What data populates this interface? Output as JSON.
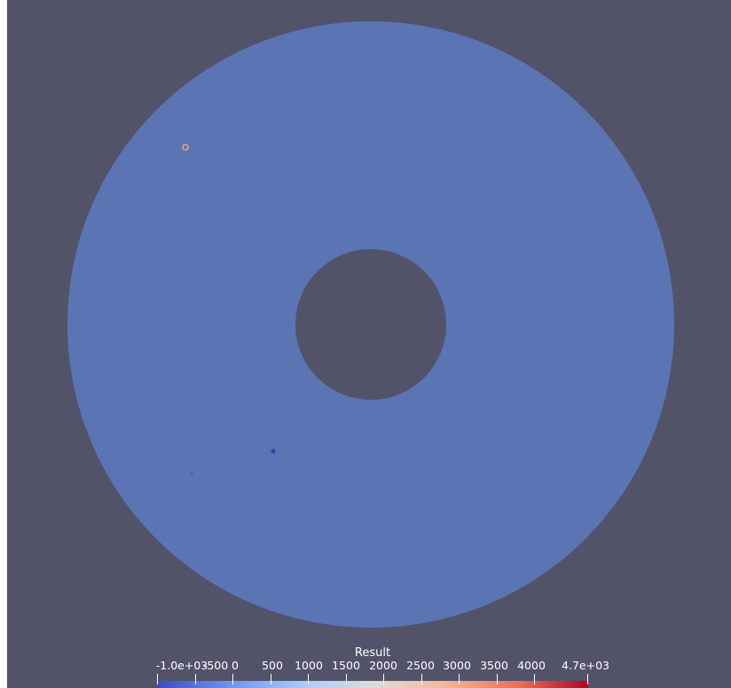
{
  "view": {
    "background_color": "#525369",
    "object_color": "#5b74b4"
  },
  "legend": {
    "title": "Result",
    "range_min": -1000,
    "range_max": 4700,
    "tick_values": [
      -1000,
      -500,
      0,
      500,
      1000,
      1500,
      2000,
      2500,
      3000,
      3500,
      4000,
      4700
    ],
    "tick_labels": [
      "-1.0e+03",
      "-500",
      "0",
      "500",
      "1000",
      "1500",
      "2000",
      "2500",
      "3000",
      "3500",
      "4000",
      "4.7e+03"
    ],
    "colormap": [
      "#3b4cc0",
      "#6f91f2",
      "#aac7fd",
      "#dcdddd",
      "#f5b69a",
      "#e7745b",
      "#b40426"
    ]
  }
}
